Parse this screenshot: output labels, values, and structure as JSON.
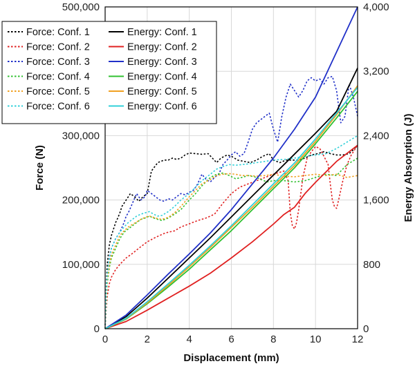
{
  "chart_data": {
    "type": "line",
    "xlabel": "Displacement (mm)",
    "ylabel_left": "Force (N)",
    "ylabel_right": "Energy Absorption (J)",
    "xlim": [
      0,
      12
    ],
    "ylim_left": [
      0,
      500000
    ],
    "ylim_right": [
      0,
      4000
    ],
    "xticks": [
      0,
      2,
      4,
      6,
      8,
      10,
      12
    ],
    "xtick_labels": [
      "0",
      "2",
      "4",
      "6",
      "8",
      "10",
      "12"
    ],
    "yticks_left": [
      0,
      100000,
      200000,
      300000,
      400000,
      500000
    ],
    "ytick_labels_left": [
      "0",
      "100,000",
      "200,000",
      "300,000",
      "",
      "500,000"
    ],
    "yticks_right": [
      0,
      800,
      1600,
      2400,
      3200,
      4000
    ],
    "ytick_labels_right": [
      "0",
      "800",
      "1,600",
      "2,400",
      "3,200",
      "4,000"
    ],
    "grid": true,
    "legend_position": "top-left",
    "series": [
      {
        "name": "Force: Conf. 1",
        "axis": "left",
        "style": "dashed",
        "color": "#000000",
        "x": [
          0,
          0.05,
          0.1,
          0.2,
          0.3,
          0.4,
          0.5,
          0.6,
          0.7,
          0.8,
          1.0,
          1.2,
          1.4,
          1.6,
          1.8,
          2.0,
          2.2,
          2.5,
          2.8,
          3.0,
          3.2,
          3.4,
          3.6,
          3.8,
          4.0,
          4.3,
          4.6,
          4.9,
          5.1,
          5.3,
          5.5,
          5.8,
          6.0,
          6.3,
          6.6,
          6.9,
          7.2,
          7.5,
          7.8,
          8.0,
          8.3,
          8.6,
          8.9,
          9.2,
          9.5,
          9.8,
          10.1,
          10.4,
          10.7,
          11.0,
          11.3,
          11.6,
          11.8,
          12.0
        ],
        "values": [
          0,
          60000,
          100000,
          130000,
          145000,
          155000,
          165000,
          172000,
          180000,
          190000,
          200000,
          210000,
          205000,
          198000,
          205000,
          210000,
          245000,
          258000,
          262000,
          262000,
          265000,
          263000,
          265000,
          270000,
          273000,
          272000,
          271000,
          272000,
          265000,
          258000,
          265000,
          270000,
          268000,
          262000,
          260000,
          258000,
          262000,
          268000,
          272000,
          262000,
          258000,
          262000,
          262000,
          262000,
          265000,
          270000,
          272000,
          275000,
          272000,
          270000,
          270000,
          272000,
          278000,
          285000
        ]
      },
      {
        "name": "Force: Conf. 2",
        "axis": "left",
        "style": "dashed",
        "color": "#e02020",
        "x": [
          0,
          0.05,
          0.1,
          0.2,
          0.3,
          0.5,
          0.7,
          1.0,
          1.3,
          1.6,
          2.0,
          2.4,
          2.8,
          3.0,
          3.3,
          3.6,
          4.0,
          4.4,
          4.8,
          5.2,
          5.6,
          6.0,
          6.4,
          6.8,
          7.2,
          7.6,
          8.0,
          8.3,
          8.5,
          8.7,
          8.8,
          8.9,
          9.0,
          9.1,
          9.2,
          9.3,
          9.4,
          9.5,
          9.6,
          9.8,
          10.0,
          10.2,
          10.4,
          10.6,
          10.7,
          10.8,
          10.9,
          11.0,
          11.1,
          11.3,
          11.5,
          11.7,
          12.0
        ],
        "values": [
          0,
          30000,
          50000,
          70000,
          80000,
          92000,
          100000,
          110000,
          117000,
          125000,
          135000,
          142000,
          148000,
          150000,
          152000,
          158000,
          163000,
          168000,
          172000,
          178000,
          195000,
          210000,
          220000,
          225000,
          230000,
          235000,
          240000,
          243000,
          245000,
          230000,
          180000,
          160000,
          155000,
          165000,
          185000,
          210000,
          235000,
          250000,
          265000,
          275000,
          283000,
          280000,
          268000,
          255000,
          225000,
          200000,
          190000,
          187000,
          200000,
          230000,
          255000,
          270000,
          285000
        ]
      },
      {
        "name": "Force: Conf. 3",
        "axis": "left",
        "style": "dashed",
        "color": "#2030c8",
        "x": [
          0,
          0.05,
          0.1,
          0.2,
          0.3,
          0.5,
          0.7,
          0.9,
          1.0,
          1.1,
          1.3,
          1.5,
          1.7,
          1.9,
          2.0,
          2.2,
          2.4,
          2.6,
          2.8,
          3.0,
          3.2,
          3.4,
          3.6,
          3.8,
          4.0,
          4.2,
          4.4,
          4.6,
          4.8,
          5.0,
          5.2,
          5.4,
          5.6,
          5.8,
          6.0,
          6.2,
          6.4,
          6.6,
          6.8,
          7.0,
          7.2,
          7.4,
          7.6,
          7.8,
          8.0,
          8.2,
          8.4,
          8.6,
          8.8,
          9.0,
          9.2,
          9.4,
          9.6,
          9.8,
          10.0,
          10.2,
          10.4,
          10.6,
          10.8,
          11.0,
          11.2,
          11.4,
          11.6,
          11.8,
          12.0
        ],
        "values": [
          0,
          50000,
          80000,
          110000,
          125000,
          140000,
          150000,
          165000,
          175000,
          180000,
          195000,
          210000,
          200000,
          205000,
          215000,
          210000,
          205000,
          200000,
          198000,
          202000,
          200000,
          205000,
          210000,
          208000,
          212000,
          215000,
          225000,
          240000,
          232000,
          228000,
          235000,
          240000,
          255000,
          262000,
          270000,
          275000,
          268000,
          272000,
          290000,
          310000,
          320000,
          325000,
          330000,
          335000,
          310000,
          290000,
          330000,
          360000,
          380000,
          370000,
          360000,
          370000,
          385000,
          390000,
          385000,
          388000,
          380000,
          390000,
          392000,
          370000,
          320000,
          330000,
          380000,
          360000,
          330000
        ]
      },
      {
        "name": "Force: Conf. 4",
        "axis": "left",
        "style": "dashed",
        "color": "#30c030",
        "x": [
          0,
          0.05,
          0.1,
          0.2,
          0.3,
          0.5,
          0.7,
          0.9,
          1.1,
          1.3,
          1.5,
          1.7,
          1.9,
          2.1,
          2.3,
          2.5,
          2.7,
          3.0,
          3.3,
          3.6,
          4.0,
          4.3,
          4.6,
          5.0,
          5.3,
          5.6,
          5.9,
          6.2,
          6.5,
          6.8,
          7.1,
          7.4,
          7.7,
          8.0,
          8.5,
          9.0,
          9.5,
          10.0,
          10.5,
          11.0,
          11.5,
          12.0
        ],
        "values": [
          0,
          40000,
          70000,
          95000,
          110000,
          125000,
          140000,
          150000,
          155000,
          160000,
          165000,
          170000,
          172000,
          175000,
          172000,
          170000,
          168000,
          172000,
          178000,
          185000,
          200000,
          210000,
          222000,
          235000,
          240000,
          242000,
          238000,
          233000,
          235000,
          238000,
          236000,
          232000,
          228000,
          230000,
          230000,
          228000,
          230000,
          235000,
          240000,
          238000,
          255000,
          265000
        ]
      },
      {
        "name": "Force: Conf. 5",
        "axis": "left",
        "style": "dashed",
        "color": "#f0a020",
        "x": [
          0,
          0.05,
          0.1,
          0.2,
          0.3,
          0.5,
          0.7,
          0.9,
          1.1,
          1.3,
          1.5,
          1.7,
          1.9,
          2.1,
          2.3,
          2.5,
          2.7,
          3.0,
          3.3,
          3.6,
          4.0,
          4.3,
          4.6,
          5.0,
          5.3,
          5.6,
          5.9,
          6.2,
          6.5,
          6.8,
          7.2,
          7.6,
          8.0,
          8.5,
          9.0,
          9.5,
          10.0,
          10.5,
          11.0,
          11.5,
          12.0
        ],
        "values": [
          0,
          45000,
          75000,
          100000,
          115000,
          130000,
          145000,
          152000,
          158000,
          162000,
          166000,
          170000,
          173000,
          175000,
          173000,
          171000,
          170000,
          173000,
          180000,
          190000,
          205000,
          215000,
          225000,
          232000,
          238000,
          240000,
          241000,
          240000,
          238000,
          238000,
          237000,
          238000,
          240000,
          237000,
          236000,
          238000,
          240000,
          238000,
          240000,
          235000,
          238000
        ]
      },
      {
        "name": "Force: Conf. 6",
        "axis": "left",
        "style": "dashed",
        "color": "#30d0d8",
        "x": [
          0,
          0.05,
          0.1,
          0.2,
          0.3,
          0.5,
          0.7,
          0.9,
          1.1,
          1.3,
          1.5,
          1.7,
          1.9,
          2.1,
          2.3,
          2.5,
          2.7,
          3.0,
          3.3,
          3.6,
          4.0,
          4.3,
          4.6,
          5.0,
          5.3,
          5.6,
          5.9,
          6.2,
          6.5,
          6.8,
          7.2,
          7.6,
          8.0,
          8.5,
          9.0,
          9.5,
          10.0,
          10.5,
          11.0,
          11.5,
          12.0
        ],
        "values": [
          0,
          55000,
          85000,
          110000,
          125000,
          140000,
          150000,
          158000,
          165000,
          170000,
          175000,
          178000,
          180000,
          182000,
          178000,
          175000,
          176000,
          182000,
          190000,
          200000,
          210000,
          220000,
          230000,
          240000,
          248000,
          252000,
          255000,
          254000,
          255000,
          256000,
          258000,
          260000,
          262000,
          263000,
          265000,
          268000,
          270000,
          272000,
          280000,
          290000,
          300000
        ]
      },
      {
        "name": "Energy: Conf. 1",
        "axis": "right",
        "style": "solid",
        "color": "#000000",
        "x": [
          0,
          1,
          2,
          3,
          4,
          5,
          6,
          7,
          8,
          9,
          10,
          11,
          12
        ],
        "values": [
          0,
          150,
          380,
          630,
          880,
          1130,
          1390,
          1650,
          1910,
          2170,
          2430,
          2700,
          3240
        ]
      },
      {
        "name": "Energy: Conf. 2",
        "axis": "right",
        "style": "solid",
        "color": "#e02020",
        "x": [
          0,
          1,
          2,
          3,
          4,
          5,
          6,
          7,
          8,
          8.5,
          9,
          9.5,
          10,
          11,
          12
        ],
        "values": [
          0,
          90,
          230,
          380,
          530,
          690,
          880,
          1080,
          1300,
          1420,
          1510,
          1680,
          1820,
          2080,
          2280
        ]
      },
      {
        "name": "Energy: Conf. 3",
        "axis": "right",
        "style": "solid",
        "color": "#2030c8",
        "x": [
          0,
          1,
          2,
          3,
          4,
          5,
          6,
          7,
          8,
          9,
          10,
          11,
          12
        ],
        "values": [
          0,
          170,
          420,
          680,
          930,
          1190,
          1480,
          1800,
          2120,
          2480,
          2880,
          3440,
          4000
        ]
      },
      {
        "name": "Energy: Conf. 4",
        "axis": "right",
        "style": "solid",
        "color": "#30c030",
        "x": [
          0,
          1,
          2,
          3,
          4,
          5,
          6,
          7,
          8,
          9,
          10,
          11,
          12
        ],
        "values": [
          0,
          120,
          310,
          520,
          740,
          980,
          1220,
          1480,
          1740,
          2000,
          2300,
          2620,
          2950
        ]
      },
      {
        "name": "Energy: Conf. 5",
        "axis": "right",
        "style": "solid",
        "color": "#f0a020",
        "x": [
          0,
          1,
          2,
          3,
          4,
          5,
          6,
          7,
          8,
          9,
          10,
          11,
          12
        ],
        "values": [
          0,
          125,
          320,
          540,
          770,
          1010,
          1260,
          1510,
          1770,
          2030,
          2330,
          2660,
          3020
        ]
      },
      {
        "name": "Energy: Conf. 6",
        "axis": "right",
        "style": "solid",
        "color": "#30d0d8",
        "x": [
          0,
          1,
          2,
          3,
          4,
          5,
          6,
          7,
          8,
          9,
          10,
          11,
          12
        ],
        "values": [
          0,
          130,
          335,
          560,
          790,
          1030,
          1280,
          1540,
          1800,
          2060,
          2360,
          2680,
          3000
        ]
      }
    ]
  }
}
